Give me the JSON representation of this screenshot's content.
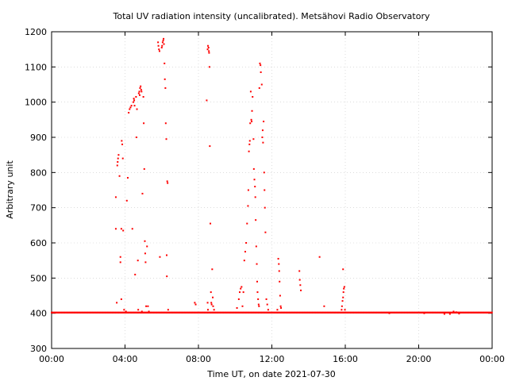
{
  "chart_data": {
    "type": "scatter",
    "title": "Total UV radiation intensity (uncalibrated). Metsähovi Radio Observatory",
    "xlabel": "Time UT, on date 2021-07-30",
    "ylabel": "Arbitrary unit",
    "xlim_hours": [
      0,
      24
    ],
    "ylim": [
      300,
      1200
    ],
    "x_ticks": [
      {
        "hour": 0,
        "label": "00:00"
      },
      {
        "hour": 4,
        "label": "04:00"
      },
      {
        "hour": 8,
        "label": "08:00"
      },
      {
        "hour": 12,
        "label": "12:00"
      },
      {
        "hour": 16,
        "label": "16:00"
      },
      {
        "hour": 20,
        "label": "20:00"
      },
      {
        "hour": 24,
        "label": "00:00"
      }
    ],
    "y_ticks": [
      300,
      400,
      500,
      600,
      700,
      800,
      900,
      1000,
      1100,
      1200
    ],
    "grid": true,
    "marker_color": "#ff0000",
    "baseline": {
      "value": 402,
      "from_hour": 0,
      "to_hour": 24,
      "step_hour": 0.033
    },
    "points": [
      [
        3.55,
        430
      ],
      [
        3.5,
        730
      ],
      [
        3.5,
        640
      ],
      [
        3.58,
        820
      ],
      [
        3.6,
        830
      ],
      [
        3.62,
        840
      ],
      [
        3.65,
        850
      ],
      [
        3.7,
        790
      ],
      [
        3.75,
        560
      ],
      [
        3.75,
        545
      ],
      [
        3.8,
        640
      ],
      [
        3.8,
        440
      ],
      [
        3.82,
        890
      ],
      [
        3.85,
        880
      ],
      [
        3.88,
        840
      ],
      [
        3.9,
        635
      ],
      [
        3.95,
        410
      ],
      [
        4.05,
        405
      ],
      [
        4.1,
        720
      ],
      [
        4.15,
        785
      ],
      [
        4.2,
        970
      ],
      [
        4.25,
        980
      ],
      [
        4.3,
        985
      ],
      [
        4.35,
        990
      ],
      [
        4.4,
        640
      ],
      [
        4.45,
        1000
      ],
      [
        4.48,
        1010
      ],
      [
        4.5,
        1005
      ],
      [
        4.52,
        990
      ],
      [
        4.55,
        510
      ],
      [
        4.6,
        1015
      ],
      [
        4.62,
        900
      ],
      [
        4.65,
        980
      ],
      [
        4.7,
        550
      ],
      [
        4.72,
        410
      ],
      [
        4.75,
        1025
      ],
      [
        4.78,
        1030
      ],
      [
        4.8,
        1020
      ],
      [
        4.82,
        1040
      ],
      [
        4.85,
        1045
      ],
      [
        4.88,
        1035
      ],
      [
        4.9,
        1030
      ],
      [
        4.92,
        405
      ],
      [
        4.95,
        740
      ],
      [
        5.0,
        1015
      ],
      [
        5.02,
        940
      ],
      [
        5.05,
        810
      ],
      [
        5.08,
        605
      ],
      [
        5.1,
        570
      ],
      [
        5.12,
        545
      ],
      [
        5.15,
        420
      ],
      [
        5.2,
        590
      ],
      [
        5.25,
        420
      ],
      [
        5.3,
        405
      ],
      [
        5.8,
        1170
      ],
      [
        5.82,
        1160
      ],
      [
        5.85,
        1150
      ],
      [
        5.88,
        1145
      ],
      [
        5.9,
        560
      ],
      [
        6.0,
        1155
      ],
      [
        6.02,
        1160
      ],
      [
        6.05,
        1170
      ],
      [
        6.08,
        1175
      ],
      [
        6.1,
        1180
      ],
      [
        6.12,
        1165
      ],
      [
        6.15,
        1110
      ],
      [
        6.17,
        1065
      ],
      [
        6.2,
        1040
      ],
      [
        6.22,
        940
      ],
      [
        6.25,
        895
      ],
      [
        6.27,
        565
      ],
      [
        6.28,
        505
      ],
      [
        6.3,
        775
      ],
      [
        6.32,
        770
      ],
      [
        6.35,
        410
      ],
      [
        7.8,
        430
      ],
      [
        7.85,
        425
      ],
      [
        8.5,
        430
      ],
      [
        8.52,
        410
      ],
      [
        8.45,
        1005
      ],
      [
        8.5,
        1150
      ],
      [
        8.52,
        1160
      ],
      [
        8.55,
        1155
      ],
      [
        8.57,
        1145
      ],
      [
        8.58,
        1140
      ],
      [
        8.6,
        1100
      ],
      [
        8.62,
        875
      ],
      [
        8.65,
        655
      ],
      [
        8.68,
        460
      ],
      [
        8.7,
        430
      ],
      [
        8.72,
        425
      ],
      [
        8.75,
        525
      ],
      [
        8.78,
        445
      ],
      [
        8.8,
        420
      ],
      [
        8.85,
        410
      ],
      [
        10.1,
        415
      ],
      [
        10.2,
        440
      ],
      [
        10.25,
        460
      ],
      [
        10.3,
        470
      ],
      [
        10.35,
        475
      ],
      [
        10.4,
        420
      ],
      [
        10.45,
        460
      ],
      [
        10.5,
        550
      ],
      [
        10.55,
        575
      ],
      [
        10.6,
        600
      ],
      [
        10.65,
        655
      ],
      [
        10.7,
        705
      ],
      [
        10.72,
        750
      ],
      [
        10.75,
        860
      ],
      [
        10.78,
        880
      ],
      [
        10.8,
        890
      ],
      [
        10.82,
        940
      ],
      [
        10.85,
        1030
      ],
      [
        10.88,
        950
      ],
      [
        10.9,
        945
      ],
      [
        10.92,
        975
      ],
      [
        10.95,
        1015
      ],
      [
        11.0,
        895
      ],
      [
        11.02,
        810
      ],
      [
        11.05,
        780
      ],
      [
        11.08,
        760
      ],
      [
        11.1,
        730
      ],
      [
        11.12,
        665
      ],
      [
        11.15,
        590
      ],
      [
        11.18,
        540
      ],
      [
        11.2,
        490
      ],
      [
        11.22,
        460
      ],
      [
        11.25,
        440
      ],
      [
        11.28,
        425
      ],
      [
        11.3,
        420
      ],
      [
        11.32,
        1040
      ],
      [
        11.35,
        1110
      ],
      [
        11.38,
        1105
      ],
      [
        11.4,
        1085
      ],
      [
        11.45,
        1050
      ],
      [
        11.48,
        900
      ],
      [
        11.5,
        920
      ],
      [
        11.52,
        885
      ],
      [
        11.55,
        945
      ],
      [
        11.58,
        800
      ],
      [
        11.6,
        750
      ],
      [
        11.62,
        700
      ],
      [
        11.65,
        630
      ],
      [
        11.7,
        440
      ],
      [
        11.75,
        425
      ],
      [
        11.8,
        410
      ],
      [
        12.3,
        410
      ],
      [
        12.35,
        555
      ],
      [
        12.38,
        540
      ],
      [
        12.4,
        520
      ],
      [
        12.42,
        490
      ],
      [
        12.45,
        450
      ],
      [
        12.48,
        420
      ],
      [
        12.5,
        415
      ],
      [
        13.5,
        520
      ],
      [
        13.52,
        495
      ],
      [
        13.55,
        480
      ],
      [
        13.58,
        465
      ],
      [
        14.6,
        560
      ],
      [
        14.85,
        420
      ],
      [
        15.8,
        410
      ],
      [
        15.82,
        420
      ],
      [
        15.85,
        435
      ],
      [
        15.88,
        445
      ],
      [
        15.9,
        460
      ],
      [
        15.92,
        470
      ],
      [
        15.95,
        475
      ],
      [
        15.88,
        525
      ],
      [
        15.98,
        410
      ],
      [
        18.4,
        400
      ],
      [
        20.3,
        400
      ],
      [
        21.4,
        398
      ],
      [
        21.7,
        398
      ],
      [
        21.9,
        405
      ],
      [
        22.05,
        403
      ],
      [
        22.2,
        399
      ]
    ]
  }
}
